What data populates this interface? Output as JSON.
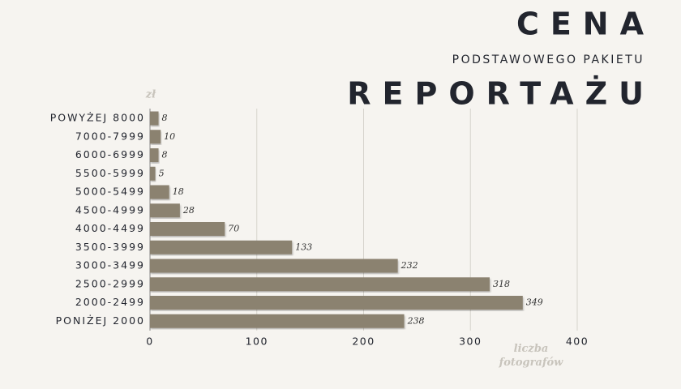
{
  "chart_data": {
    "type": "barh",
    "title": "CENA",
    "subtitle": "PODSTAWOWEGO PAKIETU",
    "title2": "REPORTAŻU",
    "y_label": "zł",
    "x_label": "liczba fotografów",
    "categories": [
      "POWYŻEJ 8000",
      "7000-7999",
      "6000-6999",
      "5500-5999",
      "5000-5499",
      "4500-4999",
      "4000-4499",
      "3500-3999",
      "3000-3499",
      "2500-2999",
      "2000-2499",
      "PONIŻEJ 2000"
    ],
    "values": [
      8,
      10,
      8,
      5,
      18,
      28,
      70,
      133,
      232,
      318,
      349,
      238
    ],
    "color": "#8b8270",
    "xlim": [
      0,
      400
    ],
    "xticks": [
      0,
      100,
      200,
      300,
      400
    ],
    "grid": true
  }
}
